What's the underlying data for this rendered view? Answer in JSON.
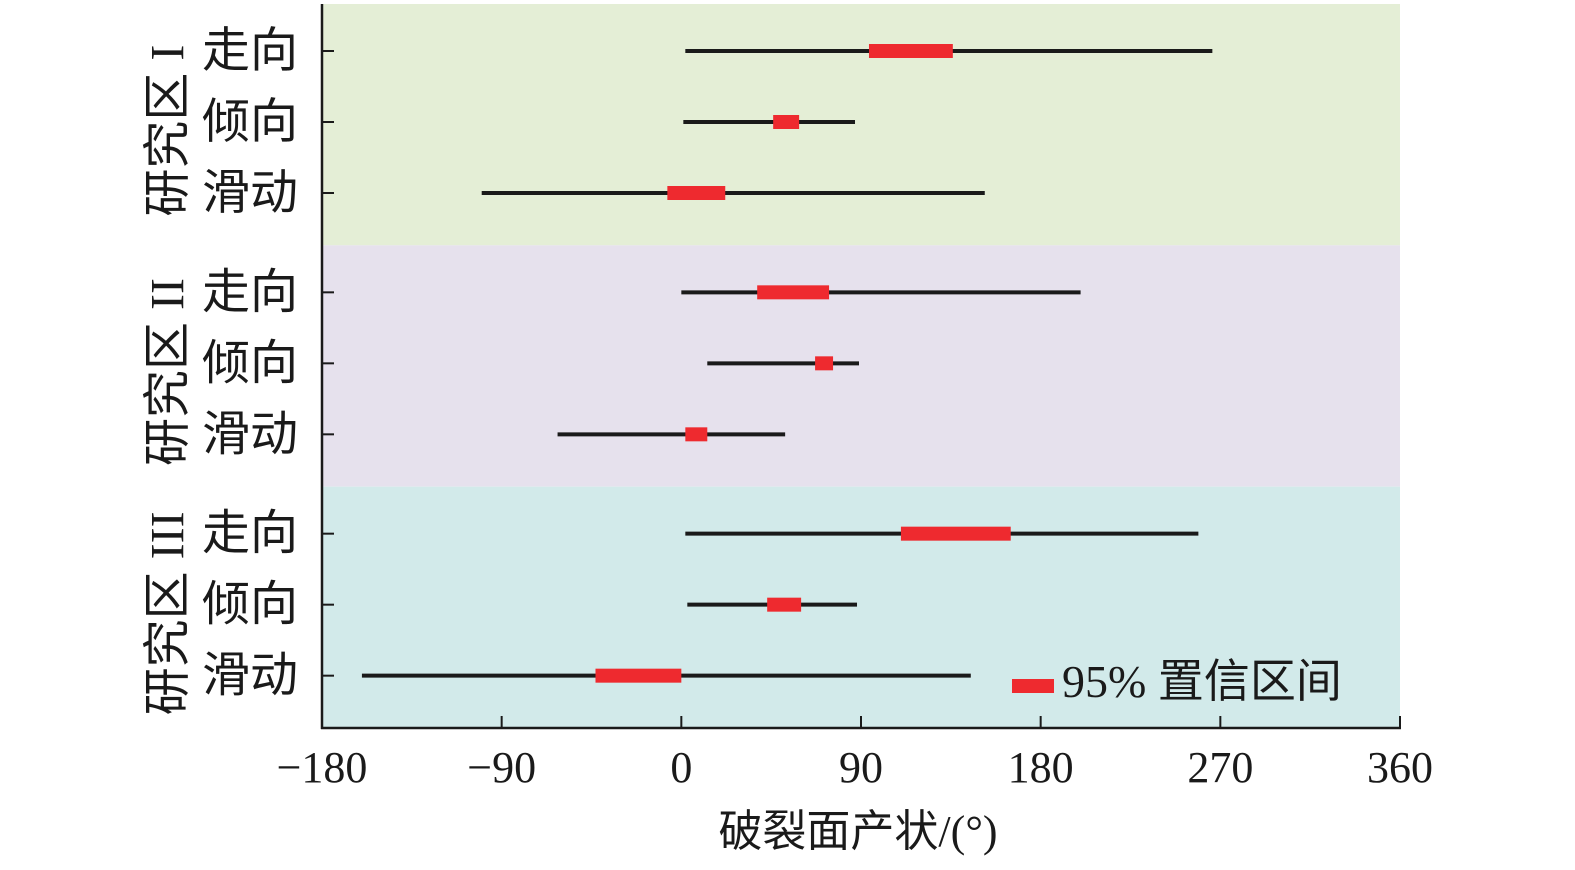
{
  "chart_data": {
    "type": "interval",
    "xlabel": "破裂面产状/(°)",
    "xlim": [
      -180,
      360
    ],
    "xticks": [
      -180,
      -90,
      0,
      90,
      180,
      270,
      360
    ],
    "xtick_labels": [
      "−180",
      "−90",
      "0",
      "90",
      "180",
      "270",
      "360"
    ],
    "legend": {
      "label": "95% 置信区间",
      "color": "#ee2a2f",
      "placement": "bottom-right"
    },
    "colors": {
      "range_line": "#1a1a1a",
      "ci_bar": "#ee2a2f"
    },
    "groups": [
      {
        "label": "研究区 I",
        "background": "#e4eed6",
        "rows": [
          {
            "label": "走向",
            "min": 2,
            "max": 266,
            "ci": [
              94,
              136
            ]
          },
          {
            "label": "倾向",
            "min": 1,
            "max": 87,
            "ci": [
              46,
              59
            ]
          },
          {
            "label": "滑动",
            "min": -100,
            "max": 152,
            "ci": [
              -7,
              22
            ]
          }
        ]
      },
      {
        "label": "研究区 II",
        "background": "#e6e1ed",
        "rows": [
          {
            "label": "走向",
            "min": 0,
            "max": 200,
            "ci": [
              38,
              74
            ]
          },
          {
            "label": "倾向",
            "min": 13,
            "max": 89,
            "ci": [
              67,
              76
            ]
          },
          {
            "label": "滑动",
            "min": -62,
            "max": 52,
            "ci": [
              2,
              13
            ]
          }
        ]
      },
      {
        "label": "研究区 III",
        "background": "#d2eaea",
        "rows": [
          {
            "label": "走向",
            "min": 2,
            "max": 259,
            "ci": [
              110,
              165
            ]
          },
          {
            "label": "倾向",
            "min": 3,
            "max": 88,
            "ci": [
              43,
              60
            ]
          },
          {
            "label": "滑动",
            "min": -160,
            "max": 145,
            "ci": [
              -43,
              0
            ]
          }
        ]
      }
    ]
  }
}
